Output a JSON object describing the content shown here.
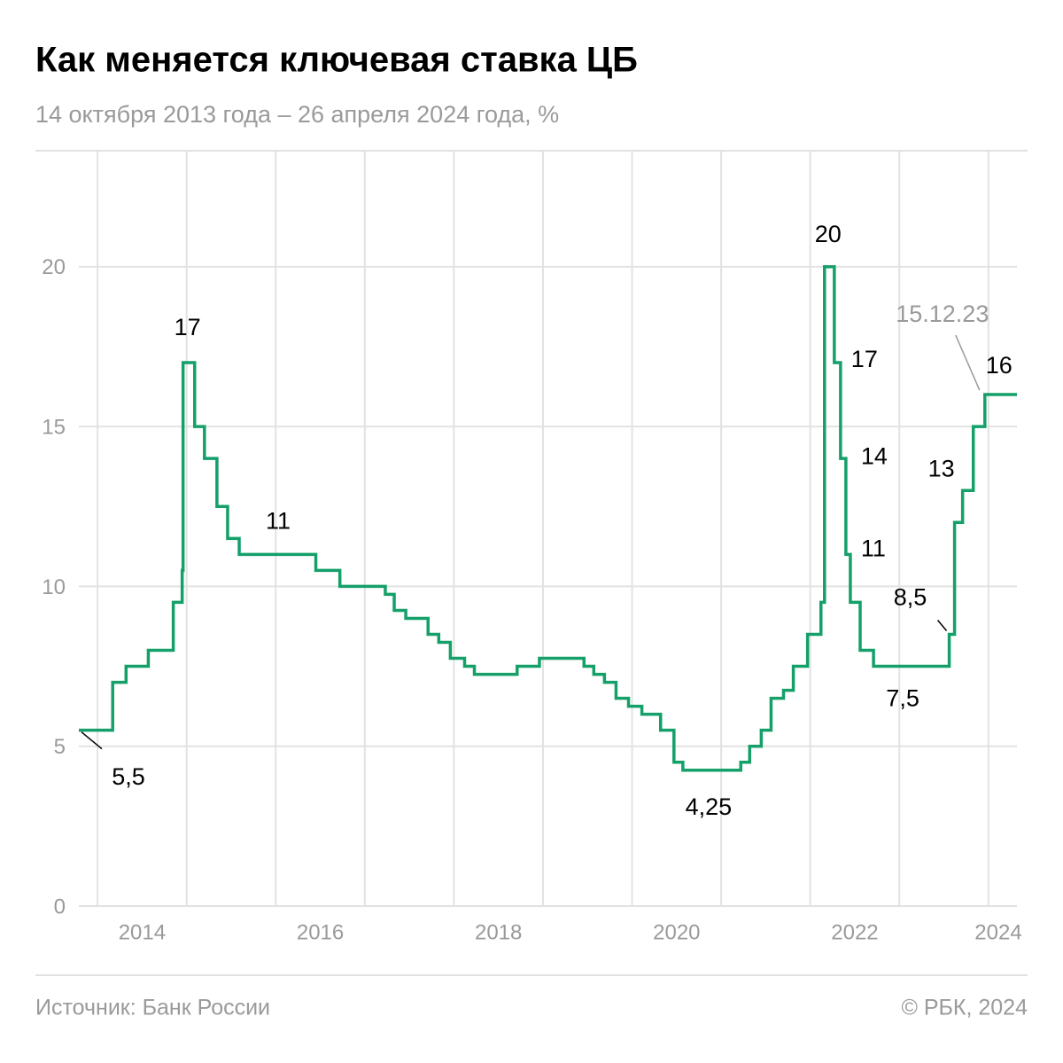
{
  "chart_data": {
    "type": "step-line",
    "title": "Как меняется ключевая ставка ЦБ",
    "subtitle": "14 октября 2013 года – 26 апреля 2024 года, %",
    "source": "Источник: Банк России",
    "copyright": "© РБК, 2024",
    "annotation": "15.12.23",
    "color": "#15a06a",
    "grid": true,
    "xlim": [
      2013.79,
      2024.32
    ],
    "xgrid": [
      2014,
      2015,
      2016,
      2017,
      2018,
      2019,
      2020,
      2021,
      2022,
      2023,
      2024
    ],
    "xticks": [
      {
        "value": 2014.5,
        "label": "2014"
      },
      {
        "value": 2016.5,
        "label": "2016"
      },
      {
        "value": 2018.5,
        "label": "2018"
      },
      {
        "value": 2020.5,
        "label": "2020"
      },
      {
        "value": 2022.5,
        "label": "2022"
      },
      {
        "value": 2024.5,
        "label": "2024"
      }
    ],
    "ylim": [
      0,
      23.6
    ],
    "yticks": [
      0,
      5,
      10,
      15,
      20
    ],
    "x": [
      2013.79,
      2014.17,
      2014.32,
      2014.57,
      2014.85,
      2014.95,
      2014.96,
      2015.09,
      2015.2,
      2015.34,
      2015.46,
      2015.59,
      2016.45,
      2016.72,
      2017.23,
      2017.33,
      2017.46,
      2017.71,
      2017.83,
      2017.96,
      2018.12,
      2018.23,
      2018.71,
      2018.96,
      2019.46,
      2019.57,
      2019.69,
      2019.82,
      2019.96,
      2020.11,
      2020.32,
      2020.47,
      2020.57,
      2021.22,
      2021.32,
      2021.45,
      2021.56,
      2021.7,
      2021.81,
      2021.97,
      2022.12,
      2022.16,
      2022.27,
      2022.34,
      2022.4,
      2022.45,
      2022.56,
      2022.71,
      2023.56,
      2023.62,
      2023.71,
      2023.83,
      2023.96,
      2024.32
    ],
    "values": [
      5.5,
      7,
      7.5,
      8,
      9.5,
      10.5,
      17,
      15,
      14,
      12.5,
      11.5,
      11,
      10.5,
      10,
      9.75,
      9.25,
      9,
      8.5,
      8.25,
      7.75,
      7.5,
      7.25,
      7.5,
      7.75,
      7.5,
      7.25,
      7,
      6.5,
      6.25,
      6,
      5.5,
      4.5,
      4.25,
      4.5,
      5,
      5.5,
      6.5,
      6.75,
      7.5,
      8.5,
      9.5,
      20,
      17,
      14,
      11,
      9.5,
      8,
      7.5,
      8.5,
      12,
      13,
      15,
      16,
      16
    ],
    "value_labels": [
      "5,5",
      null,
      null,
      null,
      null,
      null,
      "17",
      null,
      null,
      null,
      null,
      "11",
      null,
      null,
      null,
      null,
      null,
      null,
      null,
      null,
      null,
      null,
      null,
      null,
      null,
      null,
      null,
      null,
      null,
      null,
      null,
      null,
      "4,25",
      null,
      null,
      null,
      null,
      null,
      null,
      null,
      null,
      "20",
      "17",
      "14",
      "11",
      null,
      null,
      "7,5",
      "8,5",
      null,
      "13",
      null,
      "16",
      null
    ]
  }
}
